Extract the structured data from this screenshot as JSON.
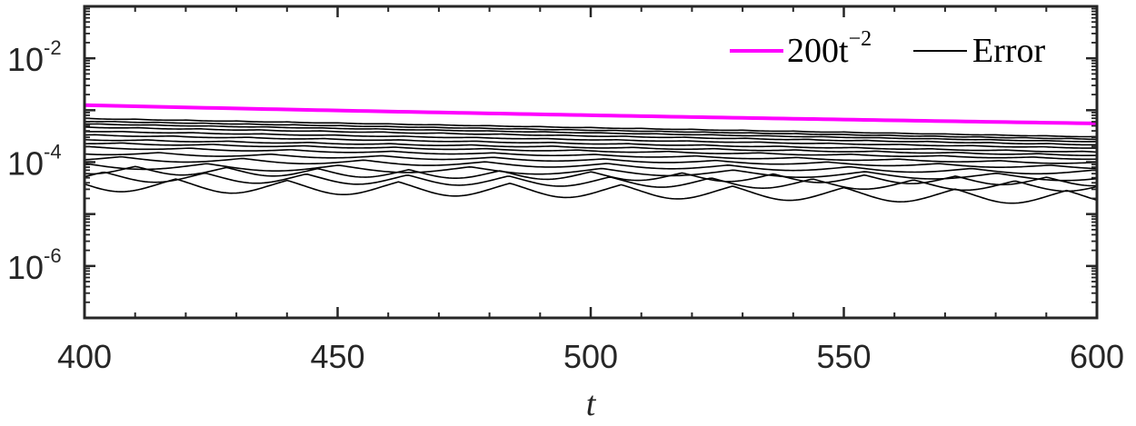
{
  "chart_data": {
    "type": "line",
    "title": "",
    "xlabel": "t",
    "ylabel": "",
    "xlim": [
      400,
      600
    ],
    "ylim": [
      1e-07,
      0.1
    ],
    "yscale": "log",
    "grid": false,
    "legend_placement": "top-right",
    "x_ticks": [
      400,
      450,
      500,
      550,
      600
    ],
    "x_tick_labels": [
      "400",
      "450",
      "500",
      "550",
      "600"
    ],
    "y_ticks": [
      1e-06,
      0.0001,
      0.01
    ],
    "y_tick_base": "10",
    "y_tick_exponents": [
      "-6",
      "-4",
      "-2"
    ],
    "legend": [
      {
        "label_main": "200t",
        "label_sup": "−2",
        "color": "#ff00ff"
      },
      {
        "label_main": "Error",
        "label_sup": "",
        "color": "#000000"
      }
    ],
    "series": [
      {
        "name": "200t^{-2}",
        "color": "#ff00ff",
        "formula": "200*t^-2",
        "x": [
          400,
          450,
          500,
          550,
          600
        ],
        "y": [
          0.00125,
          0.000988,
          0.0008,
          0.000661,
          0.000556
        ]
      },
      {
        "name": "Error",
        "color": "#000000",
        "family": [
          {
            "a400": 0.0007,
            "a600": 0.00031,
            "osc": 0.02,
            "period": 10
          },
          {
            "a400": 0.00062,
            "a600": 0.00028,
            "osc": 0.02,
            "period": 9
          },
          {
            "a400": 0.00055,
            "a600": 0.00025,
            "osc": 0.02,
            "period": 11
          },
          {
            "a400": 0.00048,
            "a600": 0.00022,
            "osc": 0.03,
            "period": 12
          },
          {
            "a400": 0.0004,
            "a600": 0.00019,
            "osc": 0.03,
            "period": 14
          },
          {
            "a400": 0.00034,
            "a600": 0.00016,
            "osc": 0.04,
            "period": 15
          },
          {
            "a400": 0.00028,
            "a600": 0.00014,
            "osc": 0.05,
            "period": 16
          },
          {
            "a400": 0.00024,
            "a600": 0.00012,
            "osc": 0.06,
            "period": 18
          },
          {
            "a400": 0.0002,
            "a600": 0.0001,
            "osc": 0.08,
            "period": 20
          },
          {
            "a400": 0.00016,
            "a600": 8.5e-05,
            "osc": 0.12,
            "period": 22
          },
          {
            "a400": 0.00013,
            "a600": 7e-05,
            "osc": 0.18,
            "period": 24
          },
          {
            "a400": 0.0001,
            "a600": 5.8e-05,
            "osc": 0.25,
            "period": 26
          },
          {
            "a400": 8.5e-05,
            "a600": 5e-05,
            "osc": 0.3,
            "period": 18
          },
          {
            "a400": 6.5e-05,
            "a600": 4.2e-05,
            "osc": 0.35,
            "period": 20
          },
          {
            "a400": 5e-05,
            "a600": 2.8e-05,
            "osc": 0.45,
            "period": 22
          }
        ]
      }
    ]
  }
}
